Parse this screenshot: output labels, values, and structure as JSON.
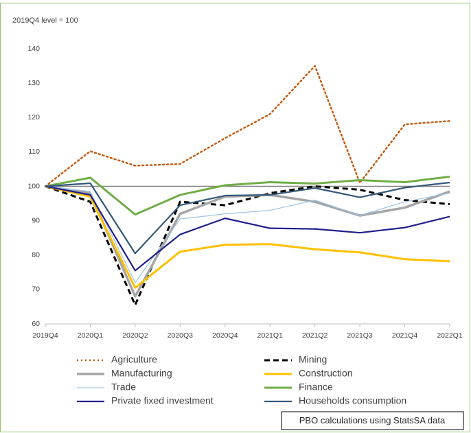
{
  "chart_data": {
    "type": "line",
    "y_axis_label": "2019Q4 level = 100",
    "note": "PBO calculations using StatsSA data",
    "categories": [
      "2019Q4",
      "2020Q1",
      "2020Q2",
      "2020Q3",
      "2020Q4",
      "2021Q1",
      "2021Q2",
      "2021Q3",
      "2021Q4",
      "2022Q1"
    ],
    "ylim": [
      60,
      140
    ],
    "yticks": [
      60,
      70,
      80,
      90,
      100,
      110,
      120,
      130,
      140
    ],
    "reference_line": 100,
    "series": [
      {
        "name": "Agriculture",
        "color": "#c55a11",
        "line_style": "dotted",
        "width": 2.5,
        "values": [
          100,
          110.2,
          106,
          106.5,
          114,
          121,
          135,
          101,
          118,
          119
        ]
      },
      {
        "name": "Mining",
        "color": "#000000",
        "line_style": "dashed",
        "width": 3,
        "values": [
          100,
          95.5,
          65.5,
          95.5,
          94.5,
          98,
          100,
          99,
          96,
          94.8
        ]
      },
      {
        "name": "Manufacturing",
        "color": "#a5a5a5",
        "line_style": "solid",
        "width": 3.5,
        "values": [
          100,
          98,
          68,
          92,
          97,
          97.5,
          95.5,
          91.5,
          93.8,
          98.5
        ]
      },
      {
        "name": "Construction",
        "color": "#ffc000",
        "line_style": "solid",
        "width": 3,
        "values": [
          100,
          97,
          70.5,
          81,
          83,
          83.2,
          81.7,
          80.8,
          78.8,
          78.2
        ]
      },
      {
        "name": "Trade",
        "color": "#9dc3e6",
        "line_style": "solid",
        "width": 1.2,
        "values": [
          100,
          98.5,
          72,
          90.5,
          92,
          93,
          96,
          91.5,
          95.5,
          98
        ]
      },
      {
        "name": "Finance",
        "color": "#70ad47",
        "line_style": "solid",
        "width": 3,
        "values": [
          100,
          102.5,
          91.8,
          97.5,
          100.3,
          101.2,
          100.8,
          101.8,
          101.2,
          102.8
        ]
      },
      {
        "name": "Private fixed investment",
        "color": "#1f1f8c",
        "line_style": "solid",
        "width": 2.2,
        "values": [
          100,
          97.5,
          75.5,
          86,
          90.7,
          87.8,
          87.6,
          86.5,
          88,
          91.2
        ]
      },
      {
        "name": "Households consumption",
        "color": "#34587a",
        "line_style": "solid",
        "width": 2.2,
        "values": [
          100,
          100.9,
          80.5,
          94.5,
          97.3,
          97.5,
          99.5,
          96.8,
          99.6,
          101.1
        ]
      }
    ]
  }
}
